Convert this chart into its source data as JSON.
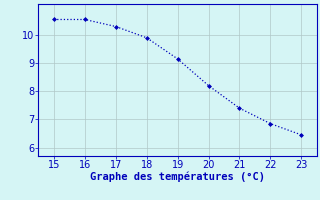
{
  "x": [
    15,
    16,
    17,
    18,
    19,
    20,
    21,
    22,
    23
  ],
  "y": [
    10.55,
    10.55,
    10.3,
    9.9,
    9.15,
    8.2,
    7.4,
    6.85,
    6.45
  ],
  "line_color": "#0000bb",
  "marker": "D",
  "marker_size": 2.0,
  "line_width": 0.9,
  "line_style": ":",
  "bg_color": "#d5f5f5",
  "grid_color": "#b0c8c8",
  "axis_label_color": "#0000bb",
  "tick_color": "#0000bb",
  "xlabel": "Graphe des températures (°C)",
  "xlabel_fontsize": 7.5,
  "xlim": [
    14.5,
    23.5
  ],
  "ylim": [
    5.7,
    11.1
  ],
  "xticks": [
    15,
    16,
    17,
    18,
    19,
    20,
    21,
    22,
    23
  ],
  "yticks": [
    6,
    7,
    8,
    9,
    10
  ],
  "tick_fontsize": 7,
  "spine_color": "#0000bb",
  "bottom_spine_color": "#0000bb"
}
